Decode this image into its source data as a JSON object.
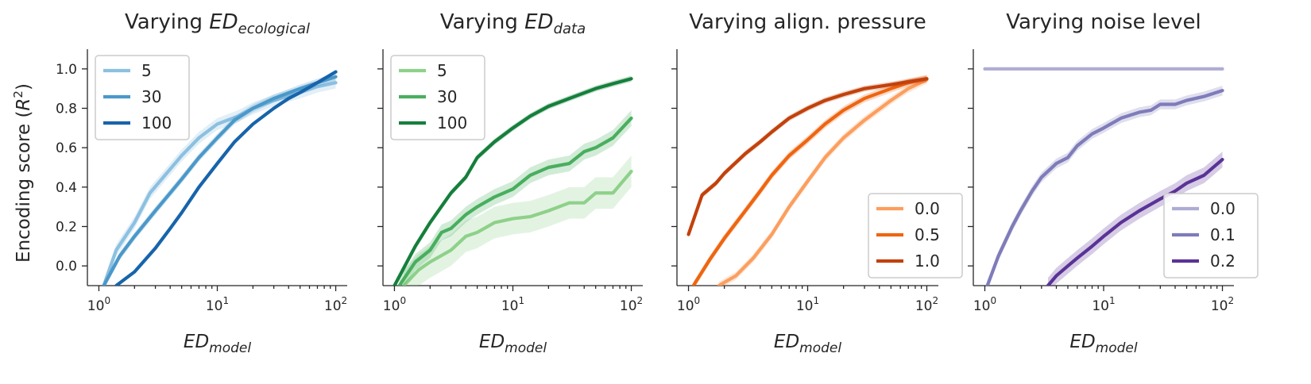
{
  "ylabel": "Encoding score (R²)",
  "chart_data": [
    {
      "type": "line",
      "title": "Varying ED",
      "title_sub": "ecological",
      "xlabel": "ED",
      "xlabel_sub": "model",
      "xscale": "log",
      "xlim": [
        0.8,
        125
      ],
      "ylim": [
        -0.1,
        1.1
      ],
      "yticks": [
        "0.0",
        "0.2",
        "0.4",
        "0.6",
        "0.8",
        "1.0"
      ],
      "xticks": [
        "10⁰",
        "10¹",
        "10²"
      ],
      "legend_loc": "upper-left",
      "series": [
        {
          "name": "5",
          "color": "#8cc0e1",
          "band": 0.03,
          "x": [
            1.1,
            1.4,
            2,
            2.7,
            3.5,
            5,
            7,
            10,
            15,
            20,
            30,
            50,
            70,
            100
          ],
          "y": [
            -0.1,
            0.08,
            0.22,
            0.37,
            0.45,
            0.56,
            0.65,
            0.72,
            0.76,
            0.8,
            0.84,
            0.88,
            0.91,
            0.93
          ]
        },
        {
          "name": "30",
          "color": "#4b98c9",
          "band": 0.02,
          "x": [
            1.1,
            1.5,
            2,
            3,
            4,
            5,
            7,
            10,
            14,
            20,
            30,
            50,
            70,
            100
          ],
          "y": [
            -0.1,
            0.05,
            0.15,
            0.28,
            0.37,
            0.44,
            0.55,
            0.65,
            0.74,
            0.8,
            0.85,
            0.9,
            0.93,
            0.96
          ]
        },
        {
          "name": "100",
          "color": "#1764ab",
          "band": 0.01,
          "x": [
            1.4,
            2,
            3,
            4,
            5,
            7,
            10,
            14,
            20,
            30,
            40,
            50,
            70,
            100
          ],
          "y": [
            -0.1,
            -0.03,
            0.09,
            0.19,
            0.27,
            0.4,
            0.52,
            0.63,
            0.72,
            0.8,
            0.85,
            0.88,
            0.93,
            0.985
          ]
        }
      ]
    },
    {
      "type": "line",
      "title": "Varying ED",
      "title_sub": "data",
      "xlabel": "ED",
      "xlabel_sub": "model",
      "xscale": "log",
      "xlim": [
        0.8,
        125
      ],
      "ylim": [
        -0.1,
        1.1
      ],
      "yticks": [],
      "xticks": [
        "10⁰",
        "10¹",
        "10²"
      ],
      "legend_loc": "upper-left",
      "series": [
        {
          "name": "5",
          "color": "#8ed18a",
          "band": 0.08,
          "x": [
            1.2,
            1.6,
            2,
            3,
            4,
            5,
            7,
            10,
            14,
            20,
            30,
            40,
            50,
            70,
            100
          ],
          "y": [
            -0.1,
            -0.02,
            0.02,
            0.08,
            0.15,
            0.17,
            0.22,
            0.24,
            0.25,
            0.28,
            0.32,
            0.32,
            0.37,
            0.37,
            0.48
          ]
        },
        {
          "name": "30",
          "color": "#49ae5e",
          "band": 0.04,
          "x": [
            1.1,
            1.5,
            2,
            2.5,
            3,
            4,
            5,
            7,
            10,
            14,
            20,
            30,
            40,
            50,
            70,
            100
          ],
          "y": [
            -0.1,
            0.02,
            0.08,
            0.17,
            0.19,
            0.26,
            0.3,
            0.35,
            0.39,
            0.46,
            0.5,
            0.52,
            0.58,
            0.6,
            0.65,
            0.75
          ]
        },
        {
          "name": "100",
          "color": "#157f3b",
          "band": 0.015,
          "x": [
            1.0,
            1.5,
            2,
            3,
            4,
            5,
            7,
            10,
            14,
            20,
            30,
            50,
            70,
            100
          ],
          "y": [
            -0.1,
            0.1,
            0.22,
            0.37,
            0.45,
            0.55,
            0.63,
            0.7,
            0.76,
            0.81,
            0.85,
            0.9,
            0.925,
            0.95
          ]
        }
      ]
    },
    {
      "type": "line",
      "title": "Varying align. pressure",
      "title_sub": "",
      "xlabel": "ED",
      "xlabel_sub": "model",
      "xscale": "log",
      "xlim": [
        0.8,
        125
      ],
      "ylim": [
        -0.1,
        1.1
      ],
      "yticks": [],
      "xticks": [
        "10⁰",
        "10¹",
        "10²"
      ],
      "legend_loc": "lower-right",
      "series": [
        {
          "name": "0.0",
          "color": "#fc9e5e",
          "band": 0.02,
          "x": [
            1.8,
            2.5,
            3.5,
            5,
            7,
            10,
            14,
            20,
            30,
            50,
            70,
            100
          ],
          "y": [
            -0.1,
            -0.05,
            0.04,
            0.16,
            0.3,
            0.43,
            0.55,
            0.65,
            0.74,
            0.84,
            0.9,
            0.945
          ]
        },
        {
          "name": "0.5",
          "color": "#ee6510",
          "band": 0.02,
          "x": [
            1.1,
            1.5,
            2,
            3,
            4,
            5,
            7,
            10,
            14,
            20,
            30,
            50,
            70,
            100
          ],
          "y": [
            -0.1,
            0.03,
            0.14,
            0.28,
            0.38,
            0.46,
            0.56,
            0.64,
            0.72,
            0.79,
            0.85,
            0.9,
            0.93,
            0.95
          ]
        },
        {
          "name": "1.0",
          "color": "#c2410b",
          "band": 0.015,
          "x": [
            1.0,
            1.3,
            1.7,
            2,
            3,
            4,
            5,
            7,
            10,
            14,
            20,
            30,
            50,
            70,
            100
          ],
          "y": [
            0.16,
            0.36,
            0.42,
            0.47,
            0.57,
            0.63,
            0.68,
            0.75,
            0.8,
            0.84,
            0.87,
            0.9,
            0.92,
            0.935,
            0.95
          ]
        }
      ]
    },
    {
      "type": "line",
      "title": "Varying noise level",
      "title_sub": "",
      "xlabel": "ED",
      "xlabel_sub": "model",
      "xscale": "log",
      "xlim": [
        0.8,
        125
      ],
      "ylim": [
        -0.1,
        1.1
      ],
      "yticks": [],
      "xticks": [
        "10⁰",
        "10¹",
        "10²"
      ],
      "legend_loc": "lower-right",
      "series": [
        {
          "name": "0.0",
          "color": "#aeacd3",
          "band": 0.004,
          "x": [
            1.0,
            100
          ],
          "y": [
            1.0,
            1.0
          ]
        },
        {
          "name": "0.1",
          "color": "#7f7cba",
          "band": 0.025,
          "x": [
            1.05,
            1.3,
            1.7,
            2,
            2.5,
            3,
            4,
            5,
            6,
            8,
            10,
            14,
            20,
            25,
            30,
            40,
            50,
            70,
            100
          ],
          "y": [
            -0.1,
            0.05,
            0.2,
            0.28,
            0.38,
            0.45,
            0.52,
            0.55,
            0.61,
            0.67,
            0.7,
            0.75,
            0.78,
            0.79,
            0.82,
            0.82,
            0.84,
            0.86,
            0.89
          ]
        },
        {
          "name": "0.2",
          "color": "#5a3396",
          "band": 0.04,
          "x": [
            3.4,
            4,
            5,
            6,
            8,
            10,
            14,
            20,
            30,
            40,
            50,
            70,
            100
          ],
          "y": [
            -0.1,
            -0.05,
            0.0,
            0.04,
            0.1,
            0.15,
            0.22,
            0.28,
            0.34,
            0.38,
            0.42,
            0.46,
            0.54
          ]
        }
      ]
    }
  ]
}
